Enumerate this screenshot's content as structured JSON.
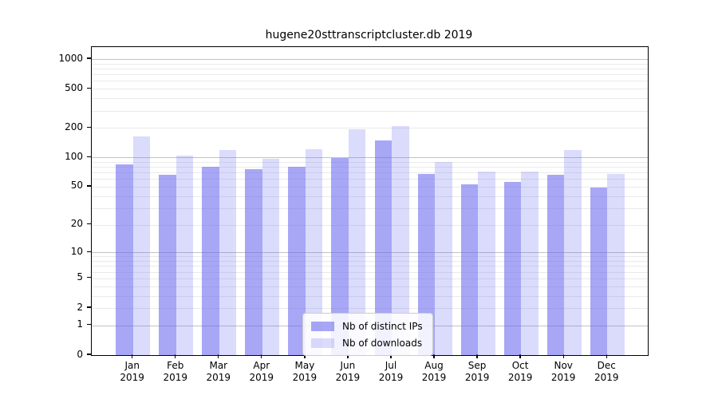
{
  "chart_data": {
    "type": "bar",
    "title": "hugene20sttranscriptcluster.db 2019",
    "categories": [
      "Jan",
      "Feb",
      "Mar",
      "Apr",
      "May",
      "Jun",
      "Jul",
      "Aug",
      "Sep",
      "Oct",
      "Nov",
      "Dec"
    ],
    "x_tick_second_line": "2019",
    "series": [
      {
        "name": "Nb of distinct IPs",
        "color": "#a6a6f6",
        "rgba": "rgba(100,100,240,0.57)",
        "values": [
          85,
          66,
          80,
          75,
          80,
          99,
          149,
          67,
          53,
          56,
          66,
          49
        ]
      },
      {
        "name": "Nb of downloads",
        "color": "#dbdbfb",
        "rgba": "rgba(100,100,240,0.23)",
        "values": [
          163,
          105,
          118,
          97,
          121,
          195,
          210,
          90,
          71,
          71,
          119,
          68
        ]
      }
    ],
    "yscale": "log1p",
    "y_tick_labels": [
      1000,
      500,
      200,
      100,
      50,
      20,
      10,
      5,
      2,
      1,
      0
    ],
    "ylim": [
      0,
      1320
    ],
    "grid": true,
    "legend_position": "lower center",
    "axis_color": "#000000",
    "grid_major_color": "#c3c3c3",
    "grid_minor_color": "#eaeaea",
    "background": "#ffffff"
  }
}
